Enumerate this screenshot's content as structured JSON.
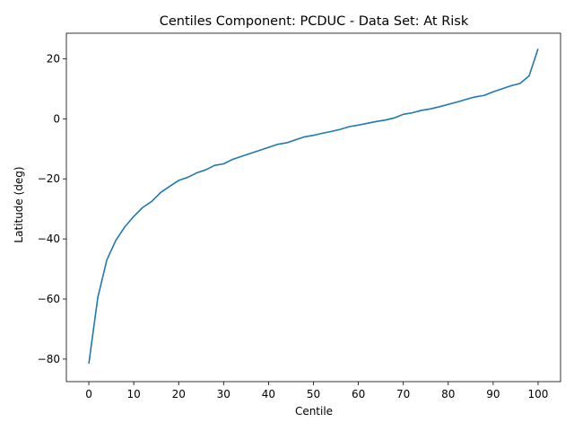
{
  "chart_data": {
    "type": "line",
    "title": "Centiles Component: PCDUC - Data Set: At Risk",
    "xlabel": "Centile",
    "ylabel": "Latitude (deg)",
    "xlim": [
      -5,
      105
    ],
    "ylim": [
      -87.5,
      28.5
    ],
    "xticks": [
      0,
      10,
      20,
      30,
      40,
      50,
      60,
      70,
      80,
      90,
      100
    ],
    "yticks": [
      -80,
      -60,
      -40,
      -20,
      0,
      20
    ],
    "grid": false,
    "series": [
      {
        "color": "#1f77b4",
        "x": [
          0,
          2,
          4,
          6,
          8,
          10,
          12,
          14,
          16,
          18,
          20,
          22,
          24,
          26,
          28,
          30,
          32,
          34,
          36,
          38,
          40,
          42,
          44,
          46,
          48,
          50,
          52,
          54,
          56,
          58,
          60,
          62,
          64,
          66,
          68,
          70,
          72,
          74,
          76,
          78,
          80,
          82,
          84,
          86,
          88,
          90,
          92,
          94,
          96,
          98,
          100
        ],
        "values": [
          -81.5,
          -59.5,
          -47.0,
          -40.5,
          -36.0,
          -32.5,
          -29.5,
          -27.5,
          -24.5,
          -22.5,
          -20.5,
          -19.5,
          -18.0,
          -17.0,
          -15.5,
          -15.0,
          -13.5,
          -12.5,
          -11.5,
          -10.5,
          -9.5,
          -8.5,
          -8.0,
          -7.0,
          -6.0,
          -5.5,
          -4.8,
          -4.2,
          -3.5,
          -2.6,
          -2.1,
          -1.5,
          -0.9,
          -0.4,
          0.3,
          1.5,
          2.0,
          2.8,
          3.3,
          4.0,
          4.8,
          5.6,
          6.5,
          7.3,
          7.8,
          9.0,
          10.0,
          11.0,
          11.8,
          14.3,
          23.3
        ]
      }
    ]
  }
}
